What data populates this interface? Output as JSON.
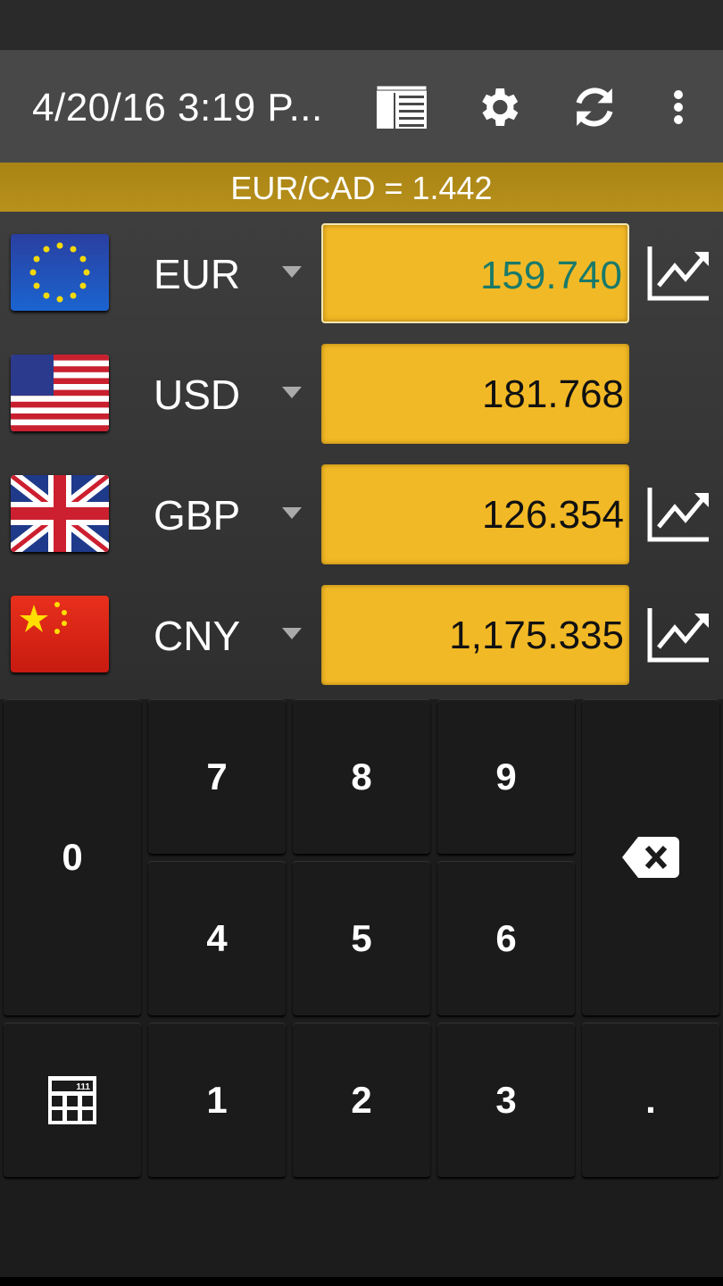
{
  "toolbar": {
    "title": "4/20/16 3:19 P...",
    "icons": [
      "news-icon",
      "gear-icon",
      "refresh-icon",
      "more-vert-icon"
    ]
  },
  "rate": "EUR/CAD = 1.442",
  "colors": {
    "accent": "#f2b926",
    "rate_bar": "#b08a1a",
    "active_value": "#1a7a6a"
  },
  "currencies": [
    {
      "code": "EUR",
      "value": "159.740",
      "flag": "eu-flag",
      "chart": true,
      "active": true
    },
    {
      "code": "USD",
      "value": "181.768",
      "flag": "us-flag",
      "chart": false
    },
    {
      "code": "GBP",
      "value": "126.354",
      "flag": "uk-flag",
      "chart": true
    },
    {
      "code": "CNY",
      "value": "1,175.335",
      "flag": "cn-flag",
      "chart": true
    }
  ],
  "keypad": {
    "k0": "0",
    "k1": "1",
    "k2": "2",
    "k3": "3",
    "k4": "4",
    "k5": "5",
    "k6": "6",
    "k7": "7",
    "k8": "8",
    "k9": "9",
    "dot": ".",
    "calc_display": "111"
  }
}
